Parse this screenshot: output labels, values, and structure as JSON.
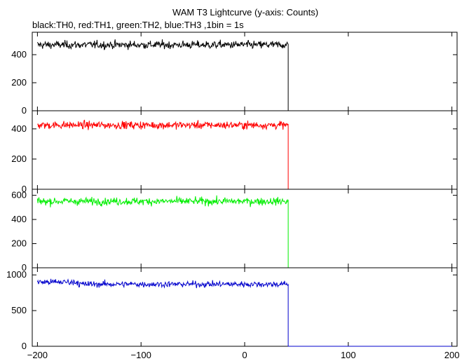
{
  "chart_data": {
    "type": "line",
    "title": "WAM T3 Lightcurve (y-axis: Counts)",
    "subtitle": "black:TH0, red:TH1, green:TH2, blue:TH3 ,1bin = 1s",
    "xlim": [
      -205,
      205
    ],
    "x_ticks": [
      -200,
      -100,
      0,
      100,
      200
    ],
    "x_tick_labels": [
      "−200",
      "−100",
      "0",
      "100",
      "200"
    ],
    "data_end_x": 42,
    "panels": [
      {
        "name": "TH0",
        "color": "#000000",
        "ylim": [
          0,
          560
        ],
        "y_ticks": [
          0,
          200,
          400
        ],
        "y_tick_labels": [
          "0",
          "200",
          "400"
        ],
        "mean_before": 470,
        "noise_std": 20,
        "value_after": 0
      },
      {
        "name": "TH1",
        "color": "#ff0000",
        "ylim": [
          0,
          520
        ],
        "y_ticks": [
          0,
          200,
          400
        ],
        "y_tick_labels": [
          "0",
          "200",
          "400"
        ],
        "mean_before": 425,
        "noise_std": 18,
        "value_after": 0
      },
      {
        "name": "TH2",
        "color": "#00ee00",
        "ylim": [
          0,
          650
        ],
        "y_ticks": [
          0,
          200,
          400,
          600
        ],
        "y_tick_labels": [
          "0",
          "200",
          "400",
          "600"
        ],
        "mean_before": 550,
        "noise_std": 22,
        "value_after": 0
      },
      {
        "name": "TH3",
        "color": "#0000cc",
        "ylim": [
          0,
          1100
        ],
        "y_ticks": [
          0,
          500,
          1000
        ],
        "y_tick_labels": [
          "0",
          "500",
          "1000"
        ],
        "mean_before": 870,
        "noise_std": 30,
        "value_after": 0
      }
    ]
  }
}
